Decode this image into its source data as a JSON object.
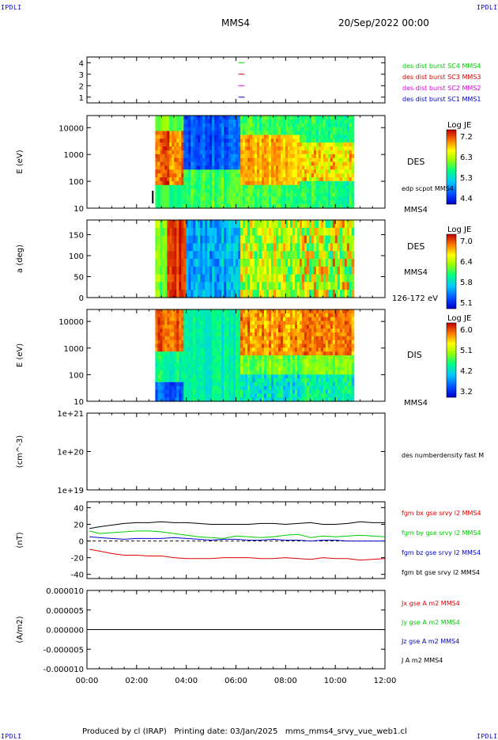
{
  "corner_labels": {
    "tl": "IPDLI",
    "tr": "IPDLI",
    "bl": "IPDLI",
    "br": "IPDLI"
  },
  "header": {
    "spacecraft": "MMS4",
    "date": "20/Sep/2022 00:00"
  },
  "footer": "Produced by cl (IRAP)   Printing date: 03/Jan/2025   mms_mms4_srvy_vue_web1.cl",
  "colors": {
    "red": "#e00000",
    "green": "#00cc00",
    "blue": "#0000cc",
    "magenta": "#e000e0",
    "black": "#000000"
  },
  "x_ticks": [
    "00:00",
    "02:00",
    "04:00",
    "06:00",
    "08:00",
    "10:00",
    "12:00"
  ],
  "chart_data": [
    {
      "type": "line",
      "panel": "spacecraft",
      "ylim": [
        0.5,
        4.5
      ],
      "yticks": [
        "1",
        "2",
        "3",
        "4"
      ],
      "series": [
        {
          "name": "des dist burst SC1 MMS1",
          "color": "#0000cc",
          "y": 1
        },
        {
          "name": "des dist burst SC2 MMS2",
          "color": "#e000e0",
          "y": 2
        },
        {
          "name": "des dist burst SC3 MMS3",
          "color": "#e00000",
          "y": 3
        },
        {
          "name": "des dist burst SC4 MMS4",
          "color": "#00cc00",
          "y": 4
        }
      ]
    },
    {
      "type": "heatmap",
      "panel": "des-energy",
      "ylabel": "E (eV)",
      "yticks": [
        "10",
        "100",
        "1000",
        "10000"
      ],
      "right_labels": [
        "DES",
        "edp scpot MMS4",
        "MMS4"
      ],
      "colorbar": {
        "title": "Log JE",
        "ticks": [
          "7.2",
          "6.3",
          "5.3",
          "4.4"
        ]
      }
    },
    {
      "type": "heatmap",
      "panel": "des-pitch",
      "ylabel": "a (deg)",
      "yticks": [
        "0",
        "50",
        "100",
        "150"
      ],
      "right_labels": [
        "DES",
        "MMS4",
        "126-172 eV"
      ],
      "colorbar": {
        "title": "Log JE",
        "ticks": [
          "7.0",
          "6.4",
          "5.8",
          "5.1"
        ]
      }
    },
    {
      "type": "heatmap",
      "panel": "dis-energy",
      "ylabel": "E (eV)",
      "yticks": [
        "10",
        "100",
        "1000",
        "10000"
      ],
      "right_labels": [
        "DIS",
        "MMS4"
      ],
      "colorbar": {
        "title": "Log JE",
        "ticks": [
          "6.0",
          "5.1",
          "4.2",
          "3.2"
        ]
      }
    },
    {
      "type": "line",
      "panel": "density",
      "ylabel": "(cm^-3)",
      "yticks": [
        "1e+19",
        "1e+20",
        "1e+21"
      ],
      "series": [
        {
          "name": "des numberdensity fast M",
          "values": []
        }
      ]
    },
    {
      "type": "line",
      "panel": "fgm",
      "ylabel": "(nT)",
      "ylim": [
        -45,
        47
      ],
      "yticks": [
        "-40",
        "-20",
        "0",
        "20",
        "40"
      ],
      "series": [
        {
          "name": "fgm bx gse srvy l2 MMS4",
          "color": "#e00000",
          "x": [
            0.1,
            0.5,
            1,
            1.5,
            2,
            2.5,
            3,
            3.5,
            4,
            4.5,
            5,
            5.5,
            6,
            6.5,
            7,
            7.5,
            8,
            8.5,
            9,
            9.5,
            10,
            10.5,
            11,
            11.5,
            12
          ],
          "values": [
            -10,
            -12,
            -15,
            -17,
            -17,
            -18,
            -18,
            -20,
            -21,
            -21,
            -21,
            -20,
            -20,
            -20,
            -21,
            -21,
            -20,
            -21,
            -22,
            -20,
            -21,
            -21,
            -23,
            -22,
            -21
          ]
        },
        {
          "name": "fgm by gse srvy l2 MMS4",
          "color": "#00cc00",
          "x": [
            0.1,
            0.5,
            1,
            1.5,
            2,
            2.5,
            3,
            3.5,
            4,
            4.5,
            5,
            5.5,
            6,
            6.5,
            7,
            7.5,
            8,
            8.5,
            9,
            9.5,
            10,
            10.5,
            11,
            11.5,
            12
          ],
          "values": [
            12,
            9,
            10,
            11,
            12,
            12,
            11,
            9,
            7,
            5,
            4,
            3,
            6,
            5,
            4,
            5,
            7,
            8,
            4,
            6,
            5,
            6,
            7,
            6,
            5
          ]
        },
        {
          "name": "fgm bz gse srvy l2 MMS4",
          "color": "#0000cc",
          "x": [
            0.1,
            0.5,
            1,
            1.5,
            2,
            2.5,
            3,
            3.5,
            4,
            4.5,
            5,
            5.5,
            6,
            6.5,
            7,
            7.5,
            8,
            8.5,
            9,
            9.5,
            10,
            10.5,
            11,
            11.5,
            12
          ],
          "values": [
            5,
            4,
            3,
            2,
            3,
            3,
            3,
            4,
            3,
            2,
            1,
            2,
            2,
            1,
            1,
            2,
            1,
            1,
            0,
            1,
            1,
            0,
            0,
            0,
            0
          ]
        },
        {
          "name": "fgm bt gse srvy l2 MMS4",
          "color": "#000000",
          "x": [
            0.1,
            0.5,
            1,
            1.5,
            2,
            2.5,
            3,
            3.5,
            4,
            4.5,
            5,
            5.5,
            6,
            6.5,
            7,
            7.5,
            8,
            8.5,
            9,
            9.5,
            10,
            10.5,
            11,
            11.5,
            12
          ],
          "values": [
            15,
            17,
            19,
            21,
            22,
            22,
            23,
            22,
            22,
            21,
            20,
            20,
            20,
            20,
            21,
            21,
            20,
            21,
            22,
            20,
            20,
            21,
            23,
            22,
            22
          ]
        }
      ]
    },
    {
      "type": "line",
      "panel": "current",
      "ylabel": "(A/m2)",
      "ylim": [
        -1e-05,
        1e-05
      ],
      "yticks": [
        "-0.000010",
        "-0.000005",
        "0.000000",
        "0.000005",
        "0.000010"
      ],
      "series": [
        {
          "name": "Jx gse A m2 MMS4",
          "color": "#e00000",
          "values": []
        },
        {
          "name": "Jy gse A m2 MMS4",
          "color": "#00cc00",
          "values": []
        },
        {
          "name": "Jz gse A m2 MMS4",
          "color": "#0000cc",
          "values": []
        },
        {
          "name": "J A m2 MMS4",
          "color": "#000000",
          "x": [
            0,
            12
          ],
          "values": [
            0,
            0
          ]
        }
      ]
    }
  ]
}
